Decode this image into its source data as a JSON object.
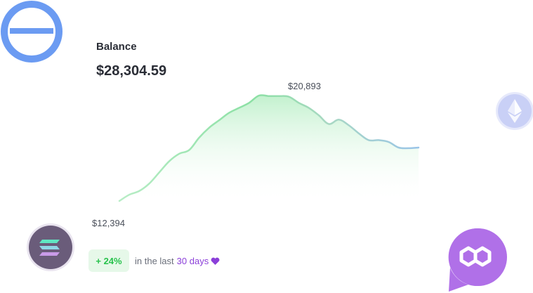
{
  "balance": {
    "label": "Balance",
    "value": "$28,304.59"
  },
  "chart_data": {
    "type": "area",
    "x": [
      0,
      1,
      2,
      3,
      4,
      5,
      6,
      7,
      8,
      9,
      10,
      11,
      12,
      13,
      14,
      15,
      16,
      17,
      18,
      19,
      20,
      21,
      22,
      23,
      24,
      25,
      26,
      27,
      28,
      29,
      30
    ],
    "values": [
      12394,
      12900,
      13200,
      13800,
      14700,
      15600,
      16200,
      16500,
      17500,
      18300,
      18900,
      19500,
      19900,
      20300,
      20893,
      20850,
      20850,
      20800,
      20300,
      19900,
      19300,
      18600,
      18950,
      18500,
      17850,
      17300,
      17300,
      17150,
      16700,
      16650,
      16700
    ],
    "peak_label": "$20,893",
    "low_label": "$12,394",
    "ylim": [
      12000,
      21500
    ],
    "grid": false,
    "colors": {
      "line_start": "#8be0a4",
      "line_end": "#9ac4e8",
      "fill": "#d7f5de"
    }
  },
  "change": {
    "badge": "+ 24%",
    "text": "in the last",
    "period": "30 days"
  },
  "icons": {
    "top_left": "circle-minus-logo-icon",
    "eth": "ethereum-icon",
    "sol": "solana-icon",
    "poly": "polygon-icon",
    "heart": "heart-icon"
  },
  "colors": {
    "accent_blue": "#6b9bf2",
    "purple": "#8b3fd9",
    "green": "#27c24c"
  }
}
